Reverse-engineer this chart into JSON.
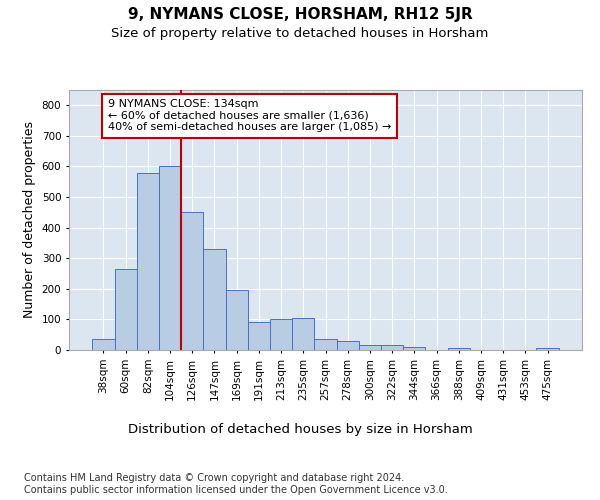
{
  "title": "9, NYMANS CLOSE, HORSHAM, RH12 5JR",
  "subtitle": "Size of property relative to detached houses in Horsham",
  "xlabel": "Distribution of detached houses by size in Horsham",
  "ylabel": "Number of detached properties",
  "footnote": "Contains HM Land Registry data © Crown copyright and database right 2024.\nContains public sector information licensed under the Open Government Licence v3.0.",
  "categories": [
    "38sqm",
    "60sqm",
    "82sqm",
    "104sqm",
    "126sqm",
    "147sqm",
    "169sqm",
    "191sqm",
    "213sqm",
    "235sqm",
    "257sqm",
    "278sqm",
    "300sqm",
    "322sqm",
    "344sqm",
    "366sqm",
    "388sqm",
    "409sqm",
    "431sqm",
    "453sqm",
    "475sqm"
  ],
  "values": [
    35,
    265,
    580,
    600,
    450,
    330,
    195,
    90,
    100,
    105,
    35,
    30,
    15,
    15,
    10,
    0,
    5,
    0,
    0,
    0,
    7
  ],
  "bar_color": "#b8cce4",
  "bar_edge_color": "#4472c4",
  "background_color": "#ffffff",
  "plot_bg_color": "#dce6f1",
  "grid_color": "#ffffff",
  "vline_color": "#c00000",
  "vline_x_index": 4,
  "annotation_text": "9 NYMANS CLOSE: 134sqm\n← 60% of detached houses are smaller (1,636)\n40% of semi-detached houses are larger (1,085) →",
  "annotation_box_color": "#ffffff",
  "annotation_box_edge_color": "#c00000",
  "ylim": [
    0,
    850
  ],
  "yticks": [
    0,
    100,
    200,
    300,
    400,
    500,
    600,
    700,
    800
  ],
  "title_fontsize": 11,
  "subtitle_fontsize": 9.5,
  "ylabel_fontsize": 9,
  "xlabel_fontsize": 9.5,
  "tick_fontsize": 7.5,
  "annotation_fontsize": 8,
  "footnote_fontsize": 7
}
